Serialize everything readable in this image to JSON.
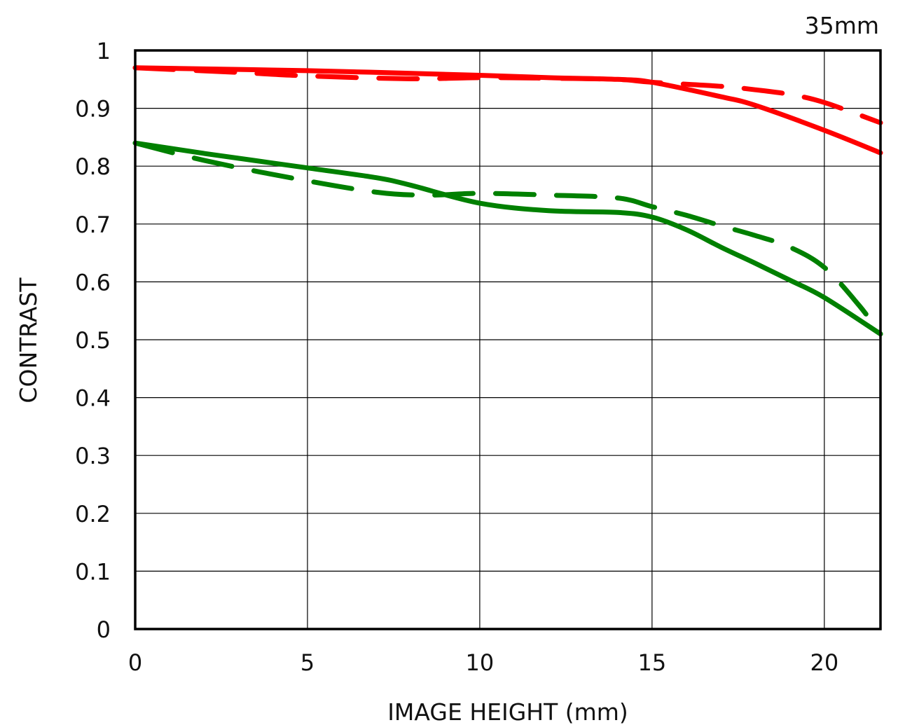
{
  "chart_data": {
    "type": "line",
    "title": "35mm",
    "xlabel": "IMAGE HEIGHT (mm)",
    "ylabel": "CONTRAST",
    "xlim": [
      0,
      21.63
    ],
    "ylim": [
      0,
      1
    ],
    "grid": true,
    "x_ticks": [
      "0",
      "5",
      "10",
      "15",
      "20"
    ],
    "y_ticks": [
      "0",
      "0.1",
      "0.2",
      "0.3",
      "0.4",
      "0.5",
      "0.6",
      "0.7",
      "0.8",
      "0.9",
      "1"
    ],
    "colors": {
      "red": "#ff0000",
      "green": "#008000"
    },
    "series": [
      {
        "color": "#ff0000",
        "style": "solid",
        "x": [
          0,
          5,
          10,
          12,
          14,
          15,
          17,
          18,
          20,
          21.63
        ],
        "y": [
          0.97,
          0.965,
          0.957,
          0.953,
          0.95,
          0.945,
          0.92,
          0.905,
          0.862,
          0.823
        ]
      },
      {
        "color": "#ff0000",
        "style": "dashed",
        "x": [
          0,
          3,
          5,
          8,
          10,
          12,
          14,
          15,
          17,
          18,
          19,
          20,
          21.63
        ],
        "y": [
          0.97,
          0.962,
          0.956,
          0.951,
          0.953,
          0.952,
          0.95,
          0.945,
          0.938,
          0.932,
          0.924,
          0.91,
          0.875
        ]
      },
      {
        "color": "#008000",
        "style": "solid",
        "x": [
          0,
          2,
          5,
          7,
          8,
          10,
          12,
          14,
          15,
          16,
          17,
          18,
          19,
          20,
          21.63
        ],
        "y": [
          0.84,
          0.822,
          0.797,
          0.78,
          0.767,
          0.736,
          0.723,
          0.72,
          0.712,
          0.69,
          0.66,
          0.632,
          0.603,
          0.573,
          0.51
        ]
      },
      {
        "color": "#008000",
        "style": "dashed",
        "x": [
          0,
          2,
          4.5,
          7,
          8.5,
          10,
          12,
          14,
          15,
          16,
          17,
          18,
          19,
          20,
          21,
          21.63
        ],
        "y": [
          0.84,
          0.81,
          0.78,
          0.755,
          0.75,
          0.753,
          0.75,
          0.745,
          0.73,
          0.715,
          0.697,
          0.68,
          0.66,
          0.625,
          0.56,
          0.51
        ]
      }
    ]
  }
}
